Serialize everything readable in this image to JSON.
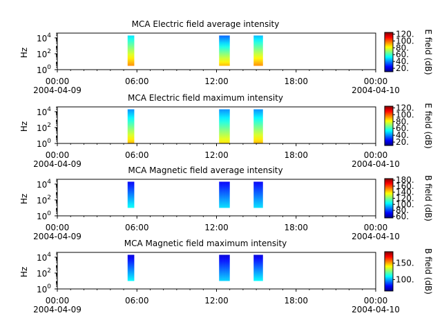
{
  "colors": {
    "jet": [
      "#00007f",
      "#0000ff",
      "#0080ff",
      "#00ffff",
      "#80ff80",
      "#ffff00",
      "#ff8000",
      "#ff0000",
      "#7f0000"
    ],
    "axis": "#000000",
    "background": "#ffffff"
  },
  "chart_data": [
    {
      "type": "heatmap",
      "title": "MCA  Electric field average intensity",
      "ylabel": "Hz",
      "yscale": "log",
      "ylim": [
        1,
        40000
      ],
      "y_ticks": [
        {
          "exp": "0"
        },
        {
          "exp": "2"
        },
        {
          "exp": "4"
        }
      ],
      "x_ticks": [
        {
          "time": "00:00",
          "date": "2004-04-09"
        },
        {
          "time": "06:00",
          "date": ""
        },
        {
          "time": "12:00",
          "date": ""
        },
        {
          "time": "18:00",
          "date": ""
        },
        {
          "time": "00:00",
          "date": "2004-04-10"
        }
      ],
      "xlim_hours": [
        0,
        24
      ],
      "colorbar": {
        "label": "E field (dB)",
        "range": [
          10,
          125
        ],
        "ticks": [
          "20.",
          "40.",
          "60.",
          "80.",
          "100.",
          "120."
        ],
        "tick_values": [
          20,
          40,
          60,
          80,
          100,
          120
        ]
      },
      "segments": [
        {
          "start_hour": 5.3,
          "end_hour": 5.8,
          "level_low": 95,
          "level_high": 50
        },
        {
          "start_hour": 12.2,
          "end_hour": 13.0,
          "level_low": 90,
          "level_high": 35
        },
        {
          "start_hour": 14.8,
          "end_hour": 15.5,
          "level_low": 95,
          "level_high": 45
        }
      ],
      "freq_range_hz": [
        3,
        20000
      ]
    },
    {
      "type": "heatmap",
      "title": "MCA  Electric field maximum intensity",
      "ylabel": "Hz",
      "yscale": "log",
      "ylim": [
        1,
        40000
      ],
      "y_ticks": [
        {
          "exp": "0"
        },
        {
          "exp": "2"
        },
        {
          "exp": "4"
        }
      ],
      "x_ticks": [
        {
          "time": "00:00",
          "date": "2004-04-09"
        },
        {
          "time": "06:00",
          "date": ""
        },
        {
          "time": "12:00",
          "date": ""
        },
        {
          "time": "18:00",
          "date": ""
        },
        {
          "time": "00:00",
          "date": "2004-04-10"
        }
      ],
      "xlim_hours": [
        0,
        24
      ],
      "colorbar": {
        "label": "E field (dB)",
        "range": [
          10,
          125
        ],
        "ticks": [
          "20.",
          "40.",
          "60.",
          "80.",
          "100.",
          "120."
        ],
        "tick_values": [
          20,
          40,
          60,
          80,
          100,
          120
        ]
      },
      "segments": [
        {
          "start_hour": 5.3,
          "end_hour": 5.8,
          "level_low": 90,
          "level_high": 40
        },
        {
          "start_hour": 12.2,
          "end_hour": 13.0,
          "level_low": 85,
          "level_high": 40
        },
        {
          "start_hour": 14.8,
          "end_hour": 15.5,
          "level_low": 90,
          "level_high": 40
        }
      ],
      "freq_range_hz": [
        1,
        20000
      ]
    },
    {
      "type": "heatmap",
      "title": "MCA  Magnetic field average intensity",
      "ylabel": "Hz",
      "yscale": "log",
      "ylim": [
        1,
        40000
      ],
      "y_ticks": [
        {
          "exp": "0"
        },
        {
          "exp": "2"
        },
        {
          "exp": "4"
        }
      ],
      "x_ticks": [
        {
          "time": "00:00",
          "date": "2004-04-09"
        },
        {
          "time": "06:00",
          "date": ""
        },
        {
          "time": "12:00",
          "date": ""
        },
        {
          "time": "18:00",
          "date": ""
        },
        {
          "time": "00:00",
          "date": "2004-04-10"
        }
      ],
      "xlim_hours": [
        0,
        24
      ],
      "colorbar": {
        "label": "B field (dB)",
        "range": [
          55,
          185
        ],
        "ticks": [
          "60.",
          "80.",
          "100.",
          "120.",
          "140.",
          "160.",
          "180."
        ],
        "tick_values": [
          60,
          80,
          100,
          120,
          140,
          160,
          180
        ]
      },
      "segments": [
        {
          "start_hour": 5.3,
          "end_hour": 5.8,
          "level_low": 105,
          "level_high": 70
        },
        {
          "start_hour": 12.2,
          "end_hour": 13.0,
          "level_low": 100,
          "level_high": 70
        },
        {
          "start_hour": 14.8,
          "end_hour": 15.5,
          "level_low": 100,
          "level_high": 70
        }
      ],
      "freq_range_hz": [
        10,
        20000
      ]
    },
    {
      "type": "heatmap",
      "title": "MCA  Magnetic field maximum intensity",
      "ylabel": "Hz",
      "yscale": "log",
      "ylim": [
        1,
        40000
      ],
      "y_ticks": [
        {
          "exp": "0"
        },
        {
          "exp": "2"
        },
        {
          "exp": "4"
        }
      ],
      "x_ticks": [
        {
          "time": "00:00",
          "date": "2004-04-09"
        },
        {
          "time": "06:00",
          "date": ""
        },
        {
          "time": "12:00",
          "date": ""
        },
        {
          "time": "18:00",
          "date": ""
        },
        {
          "time": "00:00",
          "date": "2004-04-10"
        }
      ],
      "xlim_hours": [
        0,
        24
      ],
      "colorbar": {
        "label": "B field (dB)",
        "range": [
          65,
          185
        ],
        "ticks": [
          "100.",
          "150."
        ],
        "tick_values": [
          100,
          150
        ]
      },
      "segments": [
        {
          "start_hour": 5.3,
          "end_hour": 5.8,
          "level_low": 110,
          "level_high": 75
        },
        {
          "start_hour": 12.2,
          "end_hour": 13.0,
          "level_low": 105,
          "level_high": 75
        },
        {
          "start_hour": 14.8,
          "end_hour": 15.5,
          "level_low": 110,
          "level_high": 75
        }
      ],
      "freq_range_hz": [
        10,
        20000
      ]
    }
  ]
}
